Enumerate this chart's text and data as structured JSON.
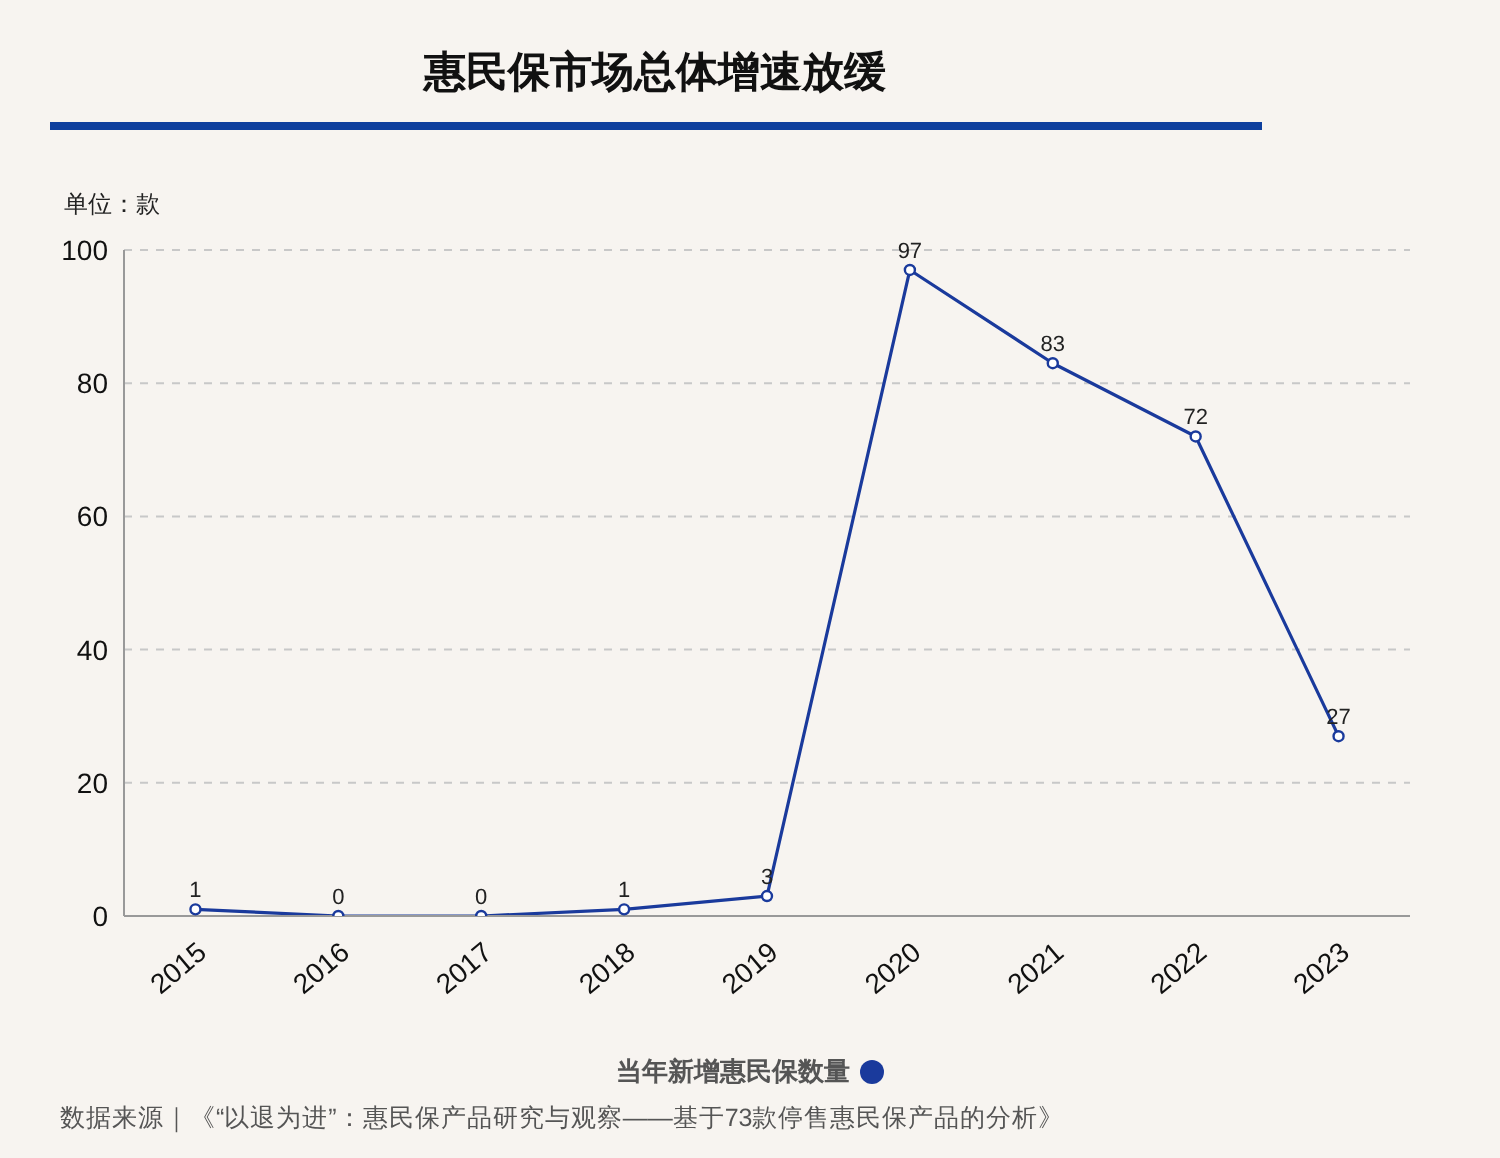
{
  "chart_data": {
    "type": "line",
    "title": "惠民保市场总体增速放缓",
    "ylabel": "单位：款",
    "categories": [
      "2015",
      "2016",
      "2017",
      "2018",
      "2019",
      "2020",
      "2021",
      "2022",
      "2023"
    ],
    "series": [
      {
        "name": "当年新增惠民保数量",
        "color": "#1a3a9c",
        "values": [
          1,
          0,
          0,
          1,
          3,
          97,
          83,
          72,
          27
        ]
      }
    ],
    "ylim": [
      0,
      100
    ],
    "yticks": [
      0,
      20,
      40,
      60,
      80,
      100
    ],
    "grid": "y",
    "legend": "bottom",
    "marker": "circle",
    "line_style": "solid",
    "data_labels": true,
    "annotations": [
      "数据来源｜《“以退为进”：惠民保产品研究与观察——基于73款停售惠民保产品的分析》"
    ]
  }
}
